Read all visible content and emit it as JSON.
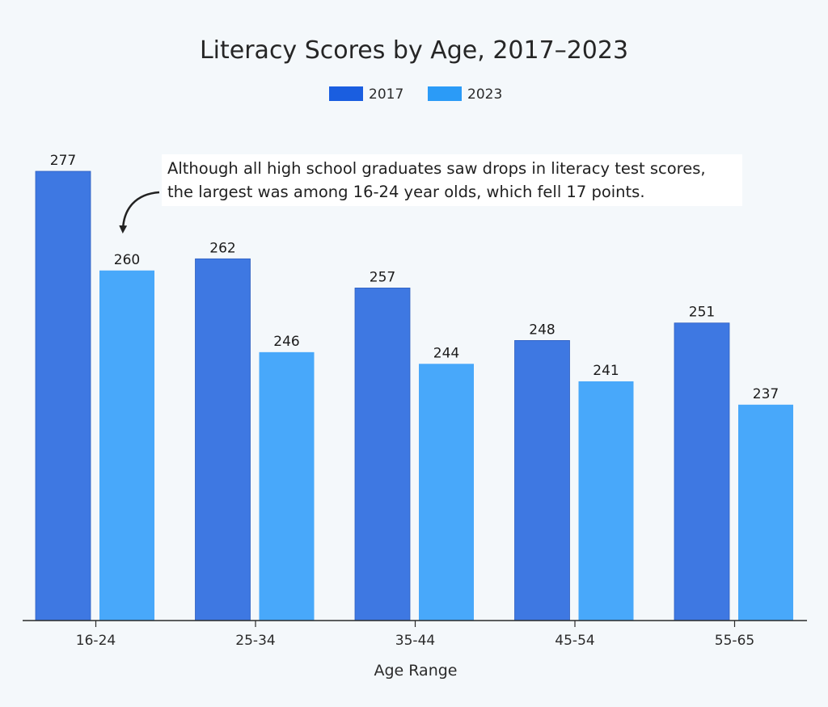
{
  "chart_data": {
    "type": "bar",
    "title": "Literacy Scores by Age, 2017–2023",
    "xlabel": "Age Range",
    "ylabel": "",
    "categories": [
      "16-24",
      "25-34",
      "35-44",
      "45-54",
      "55-65"
    ],
    "series": [
      {
        "name": "2017",
        "values": [
          277,
          262,
          257,
          248,
          251
        ],
        "color": "#3e78e2",
        "legend_color": "#1a5ee0"
      },
      {
        "name": "2023",
        "values": [
          260,
          246,
          244,
          241,
          237
        ],
        "color": "#48a8fa",
        "legend_color": "#2b9bf7"
      }
    ],
    "ylim": [
      200,
      280
    ],
    "grid": false,
    "legend_position": "top-center",
    "annotation": {
      "lines": [
        "Although all high school graduates saw drops in literacy test scores,",
        "the largest was among 16-24 year olds, which fell 17 points."
      ],
      "target_category": "16-24",
      "target_series": "2023"
    }
  }
}
